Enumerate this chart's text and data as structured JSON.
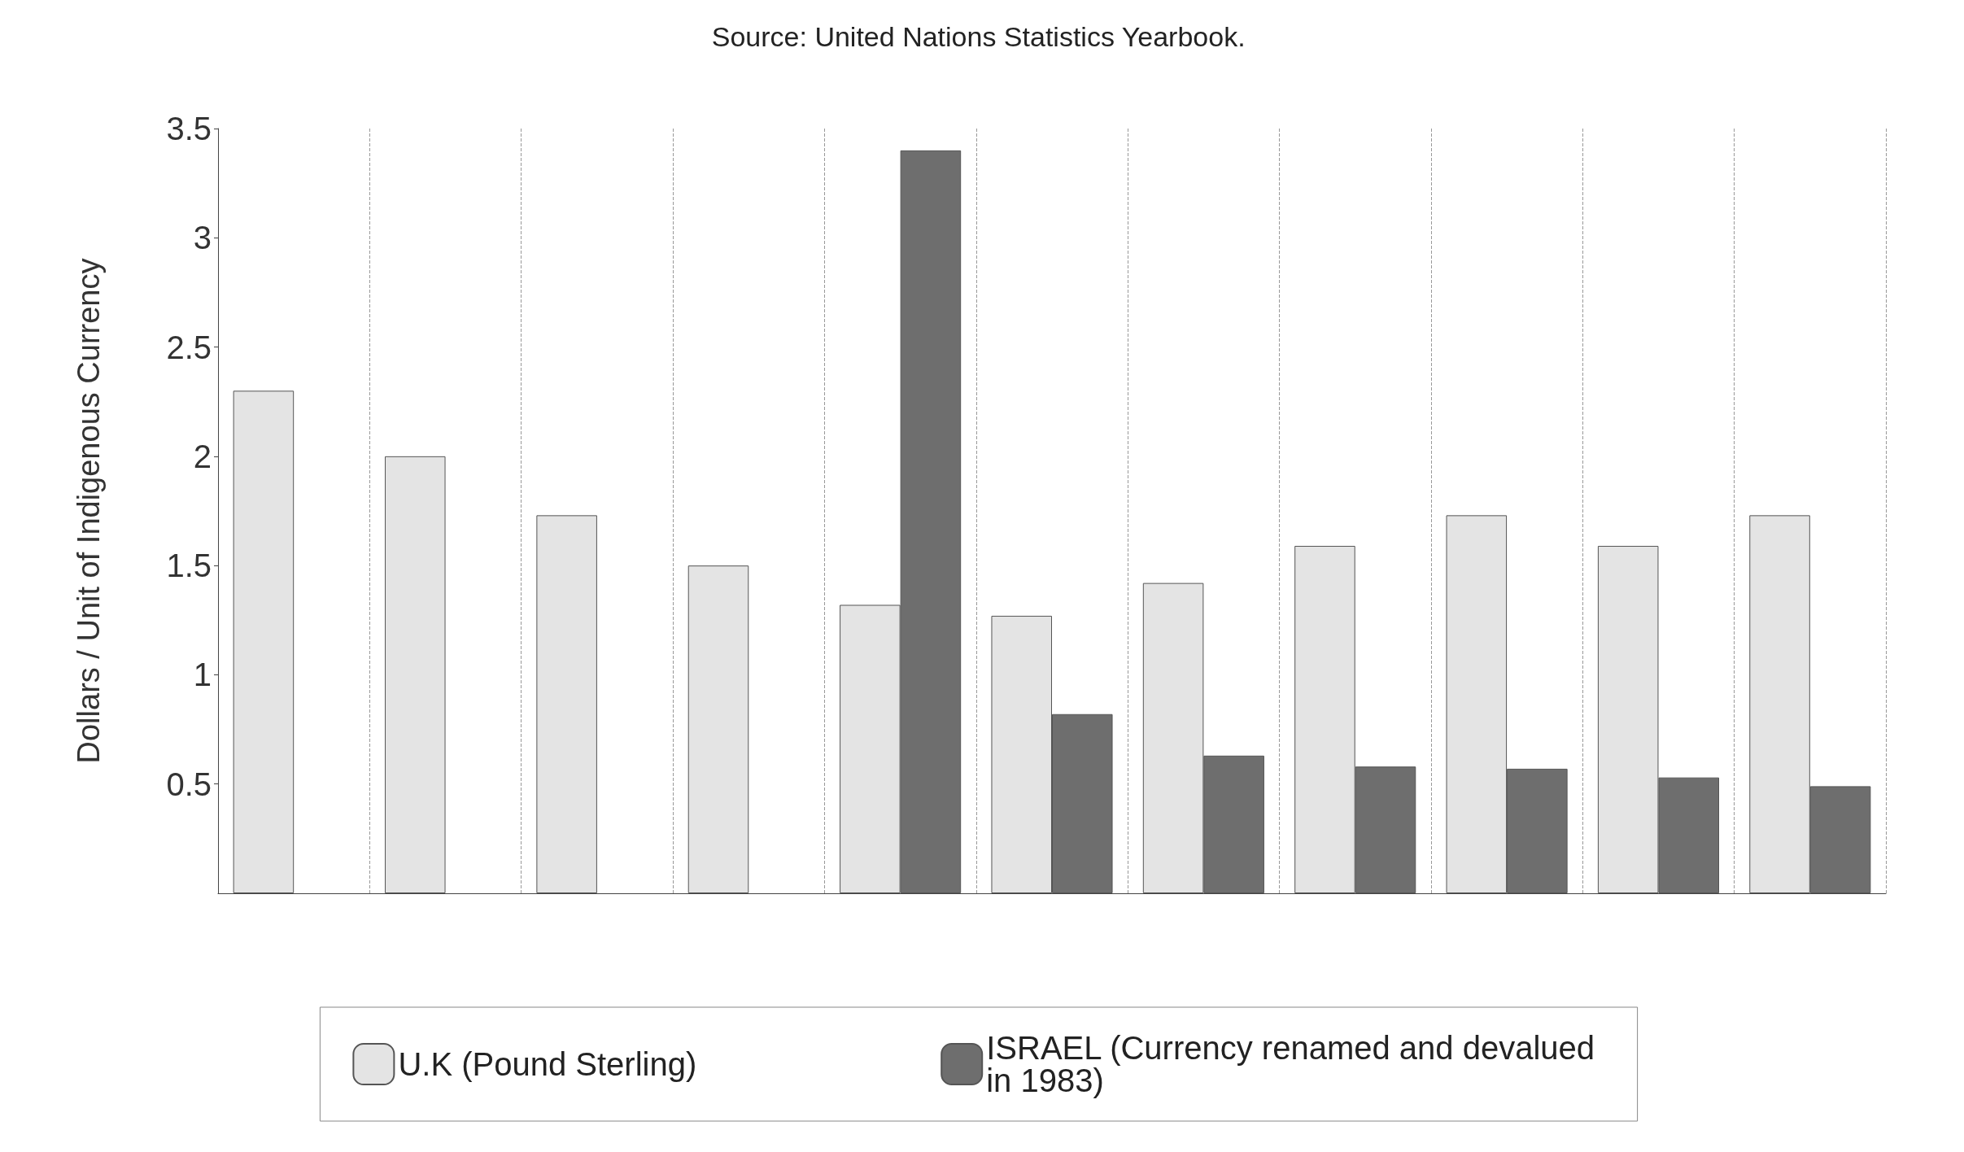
{
  "chart_data": {
    "type": "bar",
    "ylabel": "Dollars / Unit of Indigenous Currency",
    "annotations": [
      "Source: United Nations Statistics Yearbook."
    ],
    "categories": [
      null,
      null,
      null,
      null,
      null,
      null,
      null,
      null,
      null,
      null,
      null
    ],
    "series": [
      {
        "name": "U.K (Pound Sterling)",
        "color": "#e4e4e4",
        "values": [
          2.3,
          2.0,
          1.73,
          1.5,
          1.32,
          1.27,
          1.42,
          1.59,
          1.73,
          1.59,
          1.73
        ]
      },
      {
        "name": "ISRAEL (Currency renamed and devalued in 1983)",
        "color": "#6e6e6e",
        "values": [
          null,
          null,
          null,
          null,
          3.4,
          0.82,
          0.63,
          0.58,
          0.57,
          0.53,
          0.49
        ]
      }
    ],
    "ylim": [
      0,
      3.5
    ],
    "yticks": [
      0.5,
      1,
      1.5,
      2,
      2.5,
      3,
      3.5
    ],
    "grid": "x",
    "legend": "bottom"
  }
}
